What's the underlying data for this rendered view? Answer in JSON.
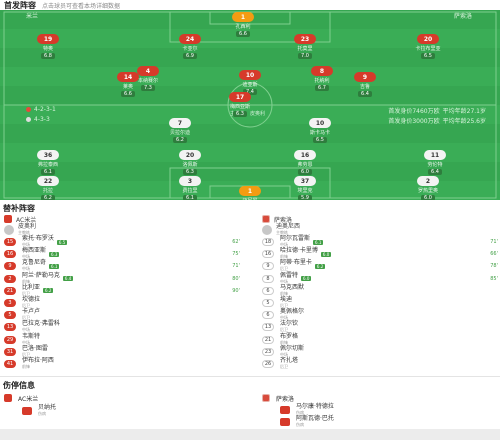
{
  "header": {
    "title": "首发阵容",
    "subtitle": "点击球员可查看本场详细数据"
  },
  "pitch": {
    "home_team": "米兰",
    "away_team": "萨索洛",
    "home_formation": "4-2-3-1",
    "away_formation": "4-3-3",
    "home_coach": "主教练：皮奥利",
    "away_coach": "主教练：迪奥尼西",
    "home_value": "首发身价7460万欧",
    "away_value": "首发身价3000万欧",
    "home_avg_age": "平均年龄27.1岁",
    "away_avg_age": "平均年龄25.6岁"
  },
  "players": [
    {
      "id": "h1",
      "num": "1",
      "name": "迈尼昂",
      "rating": "7.1",
      "team": "home",
      "pos": "gk"
    },
    {
      "id": "h2",
      "num": "19",
      "name": "特奥",
      "rating": "6.8",
      "team": "home"
    },
    {
      "id": "h3",
      "num": "24",
      "name": "卡亚尔",
      "rating": "6.9",
      "team": "home"
    },
    {
      "id": "h4",
      "num": "23",
      "name": "托莫里",
      "rating": "7.0",
      "team": "home"
    },
    {
      "id": "h5",
      "num": "20",
      "name": "卡拉布里亚",
      "rating": "6.5",
      "team": "home"
    },
    {
      "id": "h6",
      "num": "4",
      "name": "本纳赛尔",
      "rating": "7.3",
      "team": "home"
    },
    {
      "id": "h7",
      "num": "8",
      "name": "托纳利",
      "rating": "6.7",
      "team": "home"
    },
    {
      "id": "h8",
      "num": "10",
      "name": "迪亚斯",
      "rating": "7.4",
      "team": "home"
    },
    {
      "id": "h9",
      "num": "14",
      "name": "莱奥",
      "rating": "6.6",
      "team": "home"
    },
    {
      "id": "h10",
      "num": "9",
      "name": "吉鲁",
      "rating": "6.4",
      "team": "home"
    },
    {
      "id": "h11",
      "num": "17",
      "name": "梅西亚斯",
      "rating": "6.3",
      "team": "home"
    },
    {
      "id": "a1",
      "num": "7",
      "name": "贝拉尔迪",
      "rating": "6.2",
      "team": "away"
    },
    {
      "id": "a2",
      "num": "10",
      "name": "斯卡马卡",
      "rating": "6.5",
      "team": "away"
    },
    {
      "id": "a3",
      "num": "36",
      "name": "弗拉泰西",
      "rating": "6.1",
      "team": "away"
    },
    {
      "id": "a4",
      "num": "20",
      "name": "洛佩斯",
      "rating": "6.3",
      "team": "away"
    },
    {
      "id": "a5",
      "num": "16",
      "name": "弗劳恩",
      "rating": "6.0",
      "team": "away"
    },
    {
      "id": "a6",
      "num": "11",
      "name": "劳伦特",
      "rating": "6.4",
      "team": "away"
    },
    {
      "id": "a7",
      "num": "22",
      "name": "托拉",
      "rating": "6.2",
      "team": "away"
    },
    {
      "id": "a8",
      "num": "3",
      "name": "费拉里",
      "rating": "6.1",
      "team": "away"
    },
    {
      "id": "a9",
      "num": "37",
      "name": "埃里克",
      "rating": "5.9",
      "team": "away"
    },
    {
      "id": "a10",
      "num": "2",
      "name": "罗热里奥",
      "rating": "6.0",
      "team": "away"
    },
    {
      "id": "a11",
      "num": "1",
      "name": "孔西利",
      "rating": "6.6",
      "team": "away",
      "pos": "gk"
    }
  ],
  "subs_title": "替补阵容",
  "home_subs": {
    "team": "AC米兰",
    "coach": "皮奥利",
    "coach_role": "主教练",
    "items": [
      {
        "num": "15",
        "name": "索托·布罗沃",
        "pos": "中场",
        "rating": "6.5",
        "time": "62'"
      },
      {
        "num": "16",
        "name": "梅西亚斯",
        "pos": "中场",
        "rating": "6.3",
        "time": "75'"
      },
      {
        "num": "9",
        "name": "克鲁尼奇",
        "pos": "中场",
        "rating": "6.1",
        "time": "71'"
      },
      {
        "num": "2",
        "name": "阿兰·萨勒马克",
        "pos": "前锋",
        "rating": "6.4",
        "time": "80'"
      },
      {
        "num": "21",
        "name": "比利亚",
        "pos": "后卫",
        "rating": "6.2",
        "time": "90'"
      },
      {
        "num": "3",
        "name": "坎德拉",
        "pos": "后卫",
        "rating": "",
        "time": ""
      },
      {
        "num": "5",
        "name": "卡卢卢",
        "pos": "后卫",
        "rating": "",
        "time": ""
      },
      {
        "num": "13",
        "name": "巴拉克·弗雷科",
        "pos": "中场",
        "rating": "",
        "time": ""
      },
      {
        "num": "29",
        "name": "韦斯特",
        "pos": "中场",
        "rating": "",
        "time": ""
      },
      {
        "num": "31",
        "name": "巴洛·图雷",
        "pos": "后卫",
        "rating": "",
        "time": ""
      },
      {
        "num": "41",
        "name": "伊布拉·阿西",
        "pos": "前锋",
        "rating": "",
        "time": ""
      }
    ]
  },
  "away_subs": {
    "team": "萨索洛",
    "coach": "迪奥尼西",
    "coach_role": "主教练",
    "items": [
      {
        "num": "18",
        "name": "阿尔瓦雷斯",
        "pos": "中场",
        "rating": "6.1",
        "time": "71'"
      },
      {
        "num": "16",
        "name": "哈拉德·卡里博",
        "pos": "前锋",
        "rating": "6.0",
        "time": "66'"
      },
      {
        "num": "9",
        "name": "阿蒂·布里卡",
        "pos": "后卫",
        "rating": "6.2",
        "time": "78'"
      },
      {
        "num": "8",
        "name": "佩雷特",
        "pos": "中场",
        "rating": "6.0",
        "time": "85'"
      },
      {
        "num": "6",
        "name": "马克西默",
        "pos": "前锋",
        "rating": "",
        "time": ""
      },
      {
        "num": "5",
        "name": "埃迪",
        "pos": "后卫",
        "rating": "",
        "time": ""
      },
      {
        "num": "6",
        "name": "奥佩格尔",
        "pos": "中场",
        "rating": "",
        "time": ""
      },
      {
        "num": "13",
        "name": "法尔钦",
        "pos": "后卫",
        "rating": "",
        "time": ""
      },
      {
        "num": "21",
        "name": "布罗格",
        "pos": "前锋",
        "rating": "",
        "time": ""
      },
      {
        "num": "23",
        "name": "佩尔切斯",
        "pos": "中场",
        "rating": "",
        "time": ""
      },
      {
        "num": "26",
        "name": "齐扎塔",
        "pos": "后卫",
        "rating": "",
        "time": ""
      }
    ]
  },
  "injury_title": "伤停信息",
  "home_injury": {
    "team": "AC米兰",
    "player": "贝纳托",
    "reason": "伤病"
  },
  "away_injury": {
    "team": "萨索洛",
    "players": [
      {
        "player": "马尔康·特德拉",
        "reason": "伤病"
      },
      {
        "player": "阿斯瓦德·巴托",
        "reason": "伤病"
      }
    ]
  }
}
